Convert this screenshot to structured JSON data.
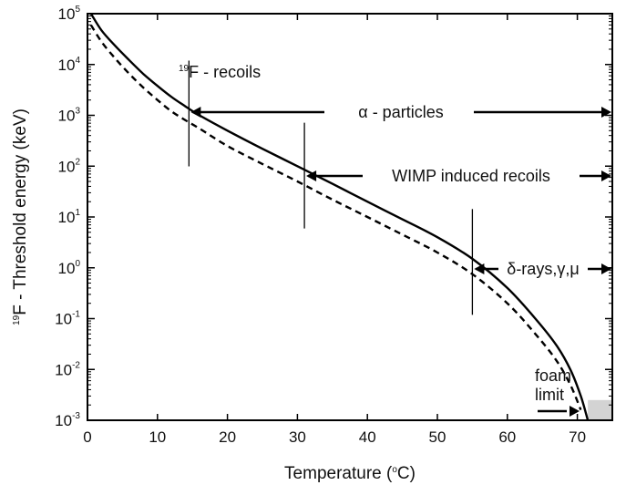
{
  "chart_data": {
    "type": "line",
    "xlabel": "Temperature (",
    "xlabel_sup": "o",
    "xlabel_tail": "C)",
    "ylabel_sup": "19",
    "ylabel": "F - Threshold energy (keV)",
    "xlim": [
      0,
      75
    ],
    "ylim_log10": [
      -3,
      5
    ],
    "y_scale": "log",
    "grid": false,
    "x_ticks": [
      "0",
      "10",
      "20",
      "30",
      "40",
      "50",
      "60",
      "70"
    ],
    "x_tick_values": [
      0,
      10,
      20,
      30,
      40,
      50,
      60,
      70
    ],
    "y_ticks": [
      {
        "base": "10",
        "exp": "5",
        "value": 5
      },
      {
        "base": "10",
        "exp": "4",
        "value": 4
      },
      {
        "base": "10",
        "exp": "3",
        "value": 3
      },
      {
        "base": "10",
        "exp": "2",
        "value": 2
      },
      {
        "base": "10",
        "exp": "1",
        "value": 1
      },
      {
        "base": "10",
        "exp": "0",
        "value": 0
      },
      {
        "base": "10",
        "exp": "-1",
        "value": -1
      },
      {
        "base": "10",
        "exp": "-2",
        "value": -2
      },
      {
        "base": "10",
        "exp": "-3",
        "value": -3
      }
    ],
    "series": [
      {
        "style": "solid",
        "x": [
          0.5,
          2,
          4,
          6,
          8,
          10,
          12,
          14,
          16,
          20,
          25,
          30,
          35,
          40,
          45,
          50,
          55,
          60,
          64,
          67,
          69,
          70.5,
          71.5
        ],
        "y": [
          100000,
          47000,
          23000,
          12000,
          6500,
          3800,
          2300,
          1500,
          1000,
          500,
          220,
          100,
          45,
          20,
          9,
          4,
          1.5,
          0.4,
          0.1,
          0.03,
          0.01,
          0.003,
          0.001
        ]
      },
      {
        "style": "dashed",
        "x": [
          0.5,
          2,
          4,
          6,
          8,
          10,
          12,
          14,
          16,
          20,
          25,
          30,
          35,
          40,
          45,
          50,
          55,
          60,
          64,
          67,
          69,
          70.5
        ],
        "y": [
          60000,
          28000,
          13000,
          6500,
          3500,
          2000,
          1200,
          800,
          550,
          250,
          110,
          50,
          22,
          10,
          4.5,
          2,
          0.75,
          0.2,
          0.05,
          0.015,
          0.005,
          0.0016
        ]
      }
    ],
    "annotations": [
      {
        "id": "f-recoils",
        "sup": "19",
        "text": "F - recoils"
      },
      {
        "id": "alpha",
        "text": "α - particles"
      },
      {
        "id": "wimp",
        "text": "WIMP induced recoils"
      },
      {
        "id": "delta",
        "text": "δ-rays,γ,μ"
      },
      {
        "id": "foam-1",
        "text": "foam"
      },
      {
        "id": "foam-2",
        "text": "limit"
      }
    ],
    "threshold_markers": [
      {
        "x": 14.5,
        "y": 1000
      },
      {
        "x": 31,
        "y": 60
      },
      {
        "x": 55,
        "y": 1.2
      }
    ],
    "foam_region": {
      "x0": 71.5,
      "x1": 75,
      "y0": 0.001,
      "y1": 0.0025
    },
    "colors": {
      "line": "#000000",
      "foam": "#d3d3d3",
      "axis": "#000000"
    }
  }
}
